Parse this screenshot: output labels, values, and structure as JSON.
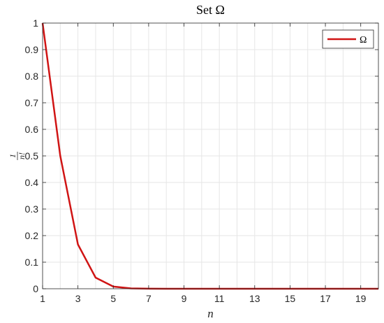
{
  "chart_data": {
    "type": "line",
    "title": "Set Ω",
    "xlabel": "n",
    "ylabel_numerator": "1",
    "ylabel_denominator": "n!",
    "xlim": [
      1,
      20
    ],
    "ylim": [
      0,
      1
    ],
    "x_ticks": [
      1,
      3,
      5,
      7,
      9,
      11,
      13,
      15,
      17,
      19
    ],
    "x_tick_labels": [
      "1",
      "3",
      "5",
      "7",
      "9",
      "11",
      "13",
      "15",
      "17",
      "19"
    ],
    "y_ticks": [
      0,
      0.1,
      0.2,
      0.3,
      0.4,
      0.5,
      0.6,
      0.7,
      0.8,
      0.9,
      1
    ],
    "y_tick_labels": [
      "0",
      "0.1",
      "0.2",
      "0.3",
      "0.4",
      "0.5",
      "0.6",
      "0.7",
      "0.8",
      "0.9",
      "1"
    ],
    "x_minor_grid": [
      2,
      4,
      6,
      8,
      10,
      12,
      14,
      16,
      18,
      20
    ],
    "grid": true,
    "legend_position": "top-right",
    "series": [
      {
        "name": "Ω",
        "color": "#d01414",
        "x": [
          1,
          2,
          3,
          4,
          5,
          6,
          7,
          8,
          9,
          10,
          11,
          12,
          13,
          14,
          15,
          16,
          17,
          18,
          19,
          20
        ],
        "y": [
          1,
          0.5,
          0.1667,
          0.0417,
          0.0083,
          0.0014,
          0.0002,
          2.48e-05,
          2.8e-06,
          2.8e-07,
          2.5e-08,
          2.1e-09,
          0,
          0,
          0,
          0,
          0,
          0,
          0,
          0
        ]
      }
    ]
  }
}
